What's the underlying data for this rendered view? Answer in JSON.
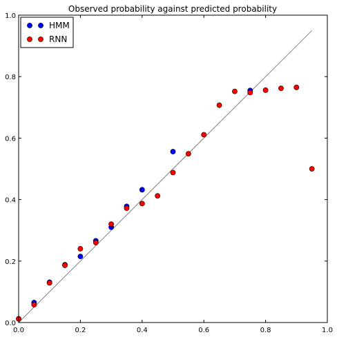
{
  "chart_data": {
    "type": "scatter",
    "title": "Observed probability against predicted probability",
    "xlabel": "",
    "ylabel": "",
    "xlim": [
      0,
      1
    ],
    "ylim": [
      0,
      1
    ],
    "x_ticks": [
      "0.0",
      "0.2",
      "0.4",
      "0.6",
      "0.8",
      "1.0"
    ],
    "y_ticks": [
      "0.0",
      "0.2",
      "0.4",
      "0.6",
      "0.8",
      "1.0"
    ],
    "grid": false,
    "legend_position": "top-left",
    "reference_line": {
      "x": [
        0,
        0.95
      ],
      "y": [
        0,
        0.95
      ],
      "color": "#808080"
    },
    "series": [
      {
        "name": "HMM",
        "color": "#0000ff",
        "points": [
          [
            0.0,
            0.012
          ],
          [
            0.05,
            0.065
          ],
          [
            0.1,
            0.131
          ],
          [
            0.15,
            0.188
          ],
          [
            0.2,
            0.215
          ],
          [
            0.25,
            0.266
          ],
          [
            0.3,
            0.31
          ],
          [
            0.35,
            0.378
          ],
          [
            0.4,
            0.432
          ],
          [
            0.5,
            0.556
          ],
          [
            0.75,
            0.755
          ]
        ]
      },
      {
        "name": "RNN",
        "color": "#ff0000",
        "points": [
          [
            0.0,
            0.012
          ],
          [
            0.05,
            0.058
          ],
          [
            0.1,
            0.129
          ],
          [
            0.15,
            0.186
          ],
          [
            0.2,
            0.24
          ],
          [
            0.25,
            0.26
          ],
          [
            0.3,
            0.32
          ],
          [
            0.35,
            0.372
          ],
          [
            0.4,
            0.387
          ],
          [
            0.45,
            0.412
          ],
          [
            0.5,
            0.488
          ],
          [
            0.55,
            0.549
          ],
          [
            0.6,
            0.611
          ],
          [
            0.65,
            0.707
          ],
          [
            0.7,
            0.752
          ],
          [
            0.75,
            0.748
          ],
          [
            0.8,
            0.756
          ],
          [
            0.85,
            0.762
          ],
          [
            0.9,
            0.765
          ],
          [
            0.95,
            0.5
          ]
        ]
      }
    ]
  }
}
